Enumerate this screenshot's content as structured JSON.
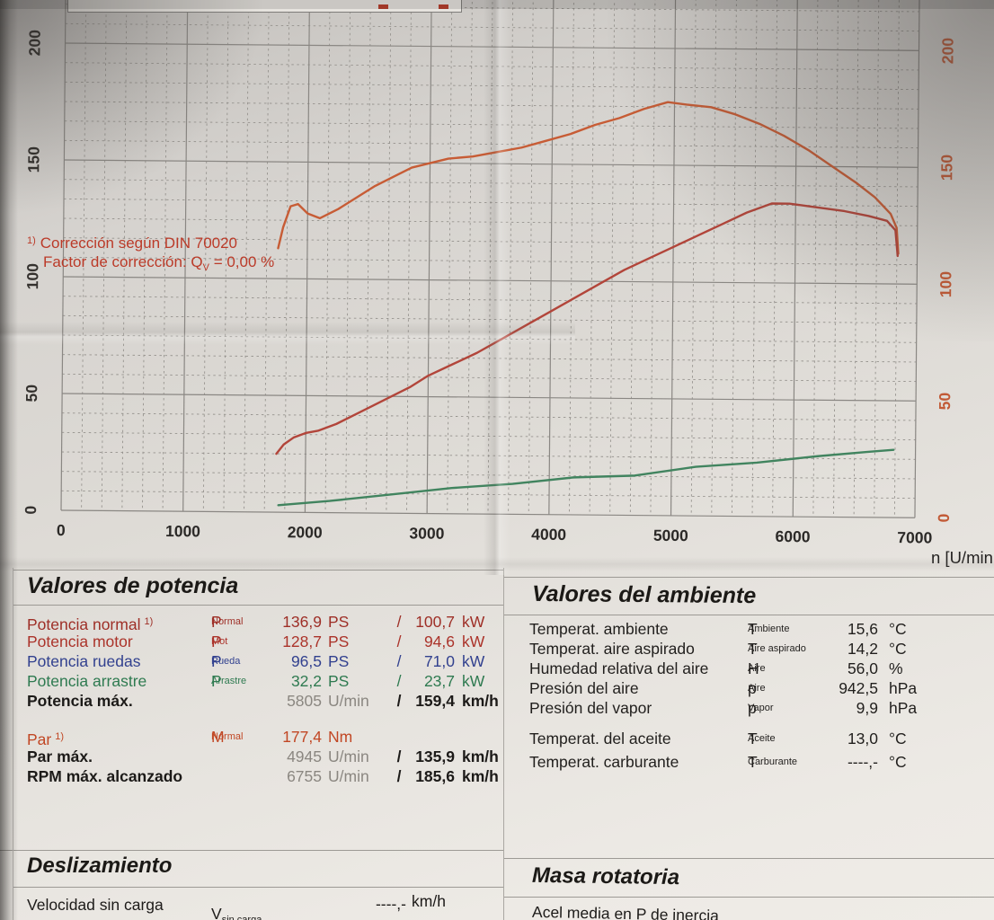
{
  "chart": {
    "x_axis_title": "n [U/min",
    "x_ticks": [
      "0",
      "1000",
      "2000",
      "3000",
      "4000",
      "5000",
      "6000",
      "7000"
    ],
    "y_ticks_left": [
      "0",
      "50",
      "100",
      "150",
      "200"
    ],
    "y_ticks_right": [
      "0",
      "50",
      "100",
      "150",
      "200"
    ],
    "colors": {
      "grid_major": "#8a8783",
      "grid_minor": "#96938e",
      "left_tick_label": "#34312e",
      "right_tick_label": "#c25a36",
      "x_tick_label": "#2b2927"
    }
  },
  "chart_data": {
    "type": "line",
    "xlabel": "n [U/min]",
    "x_range": [
      0,
      7000
    ],
    "y_range": [
      0,
      215
    ],
    "x_major_step": 1000,
    "y_major_step": 50,
    "minor_subdivisions": 6,
    "grid": "major-solid-minor-dashed",
    "legend_position": "none",
    "series": [
      {
        "name": "torque-M-Normal",
        "unit": "Nm",
        "axis": "right",
        "color": "#c75c35",
        "points": [
          [
            1760,
            113
          ],
          [
            1800,
            122
          ],
          [
            1860,
            131
          ],
          [
            1920,
            132
          ],
          [
            2000,
            128
          ],
          [
            2100,
            126
          ],
          [
            2250,
            130
          ],
          [
            2400,
            135
          ],
          [
            2550,
            140
          ],
          [
            2700,
            144
          ],
          [
            2850,
            148
          ],
          [
            3000,
            150
          ],
          [
            3150,
            152
          ],
          [
            3350,
            153
          ],
          [
            3550,
            155
          ],
          [
            3750,
            157
          ],
          [
            3950,
            160
          ],
          [
            4150,
            163
          ],
          [
            4350,
            167
          ],
          [
            4550,
            170
          ],
          [
            4750,
            174
          ],
          [
            4945,
            177
          ],
          [
            5100,
            176
          ],
          [
            5300,
            175
          ],
          [
            5500,
            172
          ],
          [
            5700,
            168
          ],
          [
            5900,
            163
          ],
          [
            6100,
            157
          ],
          [
            6300,
            150
          ],
          [
            6500,
            143
          ],
          [
            6650,
            137
          ],
          [
            6780,
            130
          ],
          [
            6830,
            124
          ],
          [
            6845,
            113
          ]
        ]
      },
      {
        "name": "power-P-Normal",
        "unit": "PS",
        "axis": "left",
        "color": "#b2453a",
        "points": [
          [
            1760,
            25
          ],
          [
            1820,
            29
          ],
          [
            1900,
            32
          ],
          [
            2000,
            34
          ],
          [
            2100,
            35
          ],
          [
            2250,
            38
          ],
          [
            2400,
            42
          ],
          [
            2550,
            46
          ],
          [
            2700,
            50
          ],
          [
            2850,
            54
          ],
          [
            3000,
            59
          ],
          [
            3200,
            64
          ],
          [
            3400,
            69
          ],
          [
            3600,
            75
          ],
          [
            3800,
            81
          ],
          [
            4000,
            87
          ],
          [
            4200,
            93
          ],
          [
            4400,
            99
          ],
          [
            4600,
            105
          ],
          [
            4800,
            110
          ],
          [
            5000,
            115
          ],
          [
            5200,
            120
          ],
          [
            5400,
            125
          ],
          [
            5600,
            130
          ],
          [
            5805,
            134
          ],
          [
            5950,
            134
          ],
          [
            6100,
            133
          ],
          [
            6250,
            132
          ],
          [
            6400,
            131
          ],
          [
            6600,
            129
          ],
          [
            6750,
            127
          ],
          [
            6820,
            123
          ],
          [
            6840,
            112
          ]
        ]
      },
      {
        "name": "drag-power-P-Arrastre",
        "unit": "PS",
        "axis": "left",
        "color": "#41845f",
        "points": [
          [
            1780,
            3
          ],
          [
            2200,
            5
          ],
          [
            2700,
            8
          ],
          [
            3200,
            11
          ],
          [
            3700,
            13
          ],
          [
            4200,
            16
          ],
          [
            4700,
            17
          ],
          [
            5200,
            21
          ],
          [
            5700,
            23
          ],
          [
            6200,
            26
          ],
          [
            6600,
            28
          ],
          [
            6820,
            29
          ]
        ]
      }
    ]
  },
  "power_section": {
    "title": "Valores de potencia",
    "rows": [
      {
        "label": "Potencia normal",
        "note": "1)",
        "sym": "P",
        "sub": "Normal",
        "v1": "136,9",
        "u1": "PS",
        "sep": "/",
        "v2": "100,7",
        "u2": "kW",
        "color": "#9e2f27"
      },
      {
        "label": "Potencia motor",
        "note": "",
        "sym": "P",
        "sub": "Mot",
        "v1": "128,7",
        "u1": "PS",
        "sep": "/",
        "v2": "94,6",
        "u2": "kW",
        "color": "#ab332a"
      },
      {
        "label": "Potencia ruedas",
        "note": "",
        "sym": "P",
        "sub": "Rueda",
        "v1": "96,5",
        "u1": "PS",
        "sep": "/",
        "v2": "71,0",
        "u2": "kW",
        "color": "#32418f"
      },
      {
        "label": "Potencia arrastre",
        "note": "",
        "sym": "P",
        "sub": "Arrastre",
        "v1": "32,2",
        "u1": "PS",
        "sep": "/",
        "v2": "23,7",
        "u2": "kW",
        "color": "#2e7a50"
      },
      {
        "label": "Potencia máx.",
        "variant": "max",
        "sym": "",
        "sub": "",
        "v1": "5805",
        "u1": "U/min",
        "sep": "/",
        "v2": "159,4",
        "u2": "km/h"
      }
    ],
    "par_rows": [
      {
        "label": "Par",
        "note": "1)",
        "sym": "M",
        "sub": "Normal",
        "v1": "177,4",
        "u1": "Nm",
        "sep": "",
        "v2": "",
        "u2": "",
        "color": "#c14724"
      },
      {
        "label": "Par máx.",
        "variant": "max",
        "sym": "",
        "sub": "",
        "v1": "4945",
        "u1": "U/min",
        "sep": "/",
        "v2": "135,9",
        "u2": "km/h"
      }
    ],
    "rpm_rows": [
      {
        "label": "RPM máx. alcanzado",
        "variant": "max",
        "sym": "",
        "sub": "",
        "v1": "6755",
        "u1": "U/min",
        "sep": "/",
        "v2": "185,6",
        "u2": "km/h"
      }
    ],
    "footnote1": {
      "note": "1)",
      "text": "Corrección según DIN 70020"
    },
    "footnote2": {
      "pre": "Factor de corrección: Q",
      "sub": "V",
      "post": " =   0,00 %"
    }
  },
  "ambient_section": {
    "title": "Valores del ambiente",
    "rows1": [
      {
        "label": "Temperat. ambiente",
        "sym": "T",
        "sub": "Ambiente",
        "v": "15,6",
        "u": "°C"
      },
      {
        "label": "Temperat. aire aspirado",
        "sym": "T",
        "sub": "Aire aspirado",
        "v": "14,2",
        "u": "°C"
      },
      {
        "label": "Humedad relativa del aire",
        "sym": "H",
        "sub": "Aire",
        "v": "56,0",
        "u": "%"
      },
      {
        "label": "Presión del aire",
        "sym": "p",
        "sub": "Aire",
        "v": "942,5",
        "u": "hPa"
      },
      {
        "label": "Presión del vapor",
        "sym": "p",
        "sub": "Vapor",
        "v": "9,9",
        "u": "hPa"
      }
    ],
    "rows2": [
      {
        "label": "Temperat. del aceite",
        "sym": "T",
        "sub": "Aceite",
        "v": "13,0",
        "u": "°C"
      },
      {
        "label": "Temperat. carburante",
        "sym": "T",
        "sub": "Carburante",
        "v": "----,-",
        "u": "°C"
      }
    ]
  },
  "slip_section": {
    "title": "Deslizamiento",
    "row": {
      "label": "Velocidad sin carga",
      "sym": "V",
      "sub": "sin carga",
      "value": "----,-",
      "unit": "km/h"
    }
  },
  "mass_section": {
    "title": "Masa rotatoria",
    "row_label": "Acel media en P de inercia"
  }
}
